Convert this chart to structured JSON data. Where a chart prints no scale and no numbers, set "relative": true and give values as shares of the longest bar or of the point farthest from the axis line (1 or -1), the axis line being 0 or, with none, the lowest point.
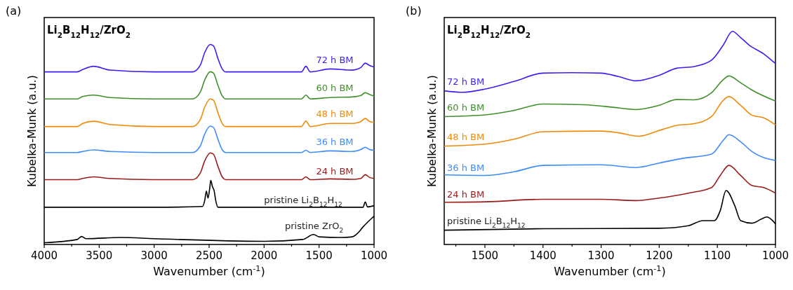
{
  "chart_data": [
    {
      "type": "line",
      "title": "Li$_{2}$B$_{12}$H$_{12}$/ZrO$_{2}$",
      "xlabel": "Wavenumber (cm$^{-1}$)",
      "ylabel": "Kubelka-Munk (a.u.)",
      "annotations": [
        "(a)"
      ],
      "relative": true,
      "xlim": [
        4000,
        1000
      ],
      "xticks": [
        4000,
        {
          "value": 3750,
          "label": null
        },
        3500,
        {
          "value": 3250,
          "label": null
        },
        3000,
        {
          "value": 2750,
          "label": null
        },
        2500,
        {
          "value": 2250,
          "label": null
        },
        2000,
        {
          "value": 1750,
          "label": null
        },
        1500,
        {
          "value": 1250,
          "label": null
        },
        1000
      ],
      "grid": false,
      "series": [
        {
          "name": "72 h BM",
          "color": "#3a1ff5",
          "x": [
            4000,
            3700,
            3650,
            3550,
            3400,
            3000,
            2650,
            2580,
            2540,
            2490,
            2460,
            2420,
            2380,
            2350,
            2000,
            1660,
            1620,
            1580,
            1400,
            1200,
            1120,
            1080,
            1040,
            1000
          ],
          "values": [
            0.863,
            0.863,
            0.875,
            0.891,
            0.872,
            0.863,
            0.863,
            0.897,
            0.96,
            1.0,
            0.993,
            0.93,
            0.877,
            0.863,
            0.863,
            0.863,
            0.891,
            0.863,
            0.878,
            0.872,
            0.885,
            0.907,
            0.895,
            0.887
          ]
        },
        {
          "name": "60 h BM",
          "color": "#3f8f2a",
          "x": [
            4000,
            3700,
            3650,
            3550,
            3400,
            3000,
            2650,
            2580,
            2540,
            2490,
            2460,
            2420,
            2380,
            2350,
            2000,
            1660,
            1620,
            1580,
            1400,
            1200,
            1120,
            1080,
            1040,
            1000
          ],
          "values": [
            0.728,
            0.728,
            0.74,
            0.747,
            0.735,
            0.728,
            0.728,
            0.762,
            0.823,
            0.864,
            0.857,
            0.796,
            0.742,
            0.728,
            0.728,
            0.728,
            0.747,
            0.728,
            0.735,
            0.738,
            0.745,
            0.759,
            0.75,
            0.743
          ]
        },
        {
          "name": "48 h BM",
          "color": "#f08a0a",
          "x": [
            4000,
            3700,
            3650,
            3550,
            3400,
            3000,
            2650,
            2580,
            2540,
            2490,
            2460,
            2420,
            2380,
            2350,
            2000,
            1660,
            1620,
            1580,
            1400,
            1200,
            1120,
            1080,
            1040,
            1000
          ],
          "values": [
            0.59,
            0.59,
            0.605,
            0.616,
            0.6,
            0.59,
            0.59,
            0.625,
            0.687,
            0.728,
            0.721,
            0.659,
            0.604,
            0.59,
            0.59,
            0.59,
            0.617,
            0.59,
            0.605,
            0.605,
            0.615,
            0.63,
            0.615,
            0.611
          ]
        },
        {
          "name": "36 h BM",
          "color": "#3d8bfd",
          "x": [
            4000,
            3700,
            3650,
            3550,
            3400,
            3000,
            2650,
            2580,
            2540,
            2490,
            2460,
            2420,
            2380,
            2350,
            2000,
            1660,
            1620,
            1580,
            1400,
            1200,
            1120,
            1080,
            1040,
            1000
          ],
          "values": [
            0.46,
            0.46,
            0.465,
            0.473,
            0.465,
            0.46,
            0.46,
            0.493,
            0.552,
            0.592,
            0.585,
            0.526,
            0.473,
            0.46,
            0.46,
            0.46,
            0.471,
            0.46,
            0.468,
            0.465,
            0.475,
            0.486,
            0.475,
            0.471
          ]
        },
        {
          "name": "24 h BM",
          "color": "#9b1a1a",
          "x": [
            4000,
            3700,
            3650,
            3550,
            3400,
            3000,
            2650,
            2580,
            2540,
            2490,
            2460,
            2420,
            2380,
            2350,
            2000,
            1660,
            1620,
            1580,
            1400,
            1200,
            1120,
            1080,
            1040,
            1000
          ],
          "values": [
            0.324,
            0.324,
            0.33,
            0.338,
            0.33,
            0.324,
            0.324,
            0.358,
            0.418,
            0.458,
            0.451,
            0.391,
            0.337,
            0.324,
            0.324,
            0.324,
            0.338,
            0.324,
            0.328,
            0.326,
            0.33,
            0.349,
            0.335,
            0.33
          ]
        },
        {
          "name": "pristine Li$_{2}$B$_{12}$H$_{12}$",
          "color": "#000000",
          "x": [
            4000,
            3000,
            2560,
            2540,
            2525,
            2510,
            2495,
            2485,
            2470,
            2455,
            2440,
            2420,
            2000,
            1100,
            1080,
            1060,
            1000
          ],
          "values": [
            0.186,
            0.186,
            0.19,
            0.22,
            0.267,
            0.232,
            0.28,
            0.32,
            0.289,
            0.27,
            0.22,
            0.186,
            0.186,
            0.186,
            0.213,
            0.188,
            0.194
          ]
        },
        {
          "name": "pristine ZrO$_{2}$",
          "color": "#000000",
          "x": [
            4000,
            3700,
            3660,
            3620,
            3300,
            3000,
            2000,
            1650,
            1550,
            1500,
            1300,
            1200,
            1150,
            1100,
            1000
          ],
          "values": [
            0.009,
            0.025,
            0.04,
            0.029,
            0.035,
            0.029,
            0.016,
            0.025,
            0.05,
            0.038,
            0.035,
            0.038,
            0.056,
            0.088,
            0.142
          ]
        }
      ]
    },
    {
      "type": "line",
      "title": "Li$_{2}$B$_{12}$H$_{12}$/ZrO$_{2}$",
      "xlabel": "Wavenumber (cm$^{-1}$)",
      "ylabel": "Kubelka-Munk (a.u.)",
      "annotations": [
        "(b)"
      ],
      "relative": true,
      "xlim": [
        1570,
        1000
      ],
      "xticks": [
        {
          "value": 1550,
          "label": null
        },
        1500,
        {
          "value": 1450,
          "label": null
        },
        1400,
        {
          "value": 1350,
          "label": null
        },
        1300,
        {
          "value": 1250,
          "label": null
        },
        1200,
        {
          "value": 1150,
          "label": null
        },
        1100,
        {
          "value": 1050,
          "label": null
        },
        1000
      ],
      "grid": false,
      "series": [
        {
          "name": "72 h BM",
          "color": "#3a1ff5",
          "x": [
            1570,
            1540,
            1500,
            1450,
            1400,
            1350,
            1300,
            1270,
            1240,
            1200,
            1170,
            1140,
            1110,
            1090,
            1074,
            1060,
            1045,
            1020,
            1000
          ],
          "values": [
            0.721,
            0.714,
            0.729,
            0.765,
            0.804,
            0.806,
            0.804,
            0.788,
            0.768,
            0.794,
            0.827,
            0.835,
            0.865,
            0.935,
            1.0,
            0.971,
            0.935,
            0.894,
            0.849
          ]
        },
        {
          "name": "60 h BM",
          "color": "#3f8f2a",
          "x": [
            1570,
            1500,
            1450,
            1400,
            1330,
            1270,
            1240,
            1200,
            1170,
            1140,
            1110,
            1090,
            1080,
            1060,
            1040,
            1000
          ],
          "values": [
            0.6,
            0.608,
            0.629,
            0.659,
            0.656,
            0.641,
            0.633,
            0.653,
            0.68,
            0.679,
            0.712,
            0.773,
            0.791,
            0.759,
            0.724,
            0.673
          ]
        },
        {
          "name": "48 h BM",
          "color": "#f08a0a",
          "x": [
            1570,
            1500,
            1450,
            1400,
            1300,
            1270,
            1235,
            1200,
            1170,
            1140,
            1110,
            1090,
            1080,
            1060,
            1040,
            1020,
            1000
          ],
          "values": [
            0.462,
            0.471,
            0.494,
            0.529,
            0.532,
            0.524,
            0.508,
            0.535,
            0.559,
            0.567,
            0.6,
            0.676,
            0.694,
            0.653,
            0.606,
            0.594,
            0.561
          ]
        },
        {
          "name": "36 h BM",
          "color": "#3d8bfd",
          "x": [
            1570,
            1500,
            1450,
            1400,
            1300,
            1240,
            1200,
            1160,
            1110,
            1090,
            1080,
            1060,
            1040,
            1000
          ],
          "values": [
            0.327,
            0.324,
            0.341,
            0.371,
            0.374,
            0.361,
            0.382,
            0.404,
            0.424,
            0.488,
            0.515,
            0.482,
            0.435,
            0.394
          ]
        },
        {
          "name": "24 h BM",
          "color": "#9b1a1a",
          "x": [
            1570,
            1500,
            1400,
            1300,
            1240,
            1200,
            1150,
            1110,
            1095,
            1080,
            1060,
            1040,
            1020,
            1000
          ],
          "values": [
            0.198,
            0.2,
            0.212,
            0.212,
            0.206,
            0.218,
            0.241,
            0.267,
            0.324,
            0.371,
            0.324,
            0.276,
            0.267,
            0.241
          ]
        },
        {
          "name": "pristine Li$_{2}$B$_{12}$H$_{12}$",
          "color": "#000000",
          "x": [
            1570,
            1400,
            1200,
            1150,
            1125,
            1105,
            1095,
            1085,
            1070,
            1060,
            1040,
            1025,
            1015,
            1005,
            1000
          ],
          "values": [
            0.067,
            0.074,
            0.076,
            0.088,
            0.112,
            0.112,
            0.159,
            0.253,
            0.182,
            0.112,
            0.1,
            0.118,
            0.129,
            0.112,
            0.096
          ]
        }
      ]
    }
  ]
}
